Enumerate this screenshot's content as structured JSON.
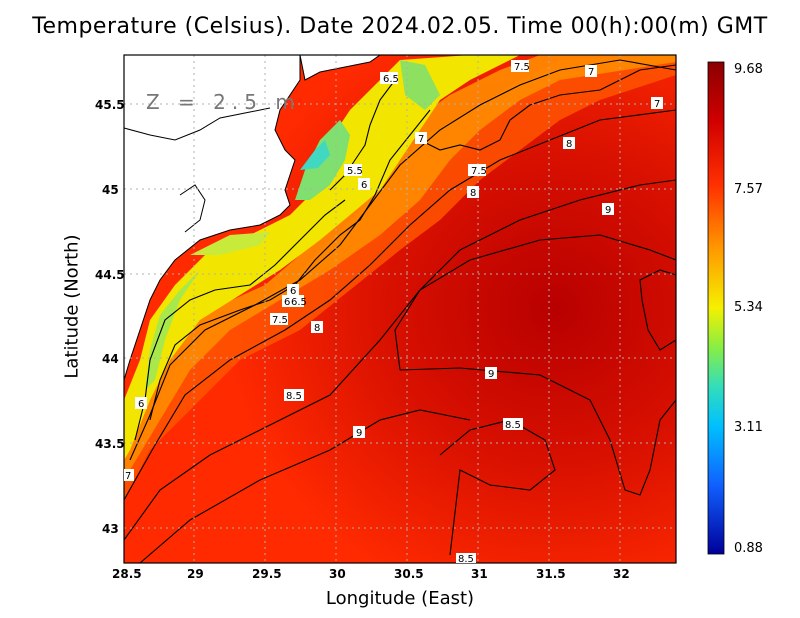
{
  "title": "Temperature (Celsius). Date 2024.02.05. Time 00(h):00(m) GMT",
  "depth_label": "Z = 2.5 m",
  "axes": {
    "xlabel": "Longitude (East)",
    "ylabel": "Latitude (North)",
    "xticks": [
      "28.5",
      "29",
      "29.5",
      "30",
      "30.5",
      "31",
      "31.5",
      "32"
    ],
    "yticks": [
      "43",
      "43.5",
      "44",
      "44.5",
      "45",
      "45.5"
    ]
  },
  "colorbar": {
    "labels": [
      "9.68",
      "7.57",
      "5.34",
      "3.11",
      "0.88"
    ],
    "colors": [
      "#8b0000",
      "#ff2000",
      "#ff9900",
      "#ffee00",
      "#44ddaa",
      "#00bfff",
      "#1060ff",
      "#0000a0"
    ]
  },
  "contour_labels": [
    "6.5",
    "7.5",
    "7",
    "7",
    "8",
    "7",
    "7.5",
    "5.5",
    "6",
    "8",
    "9",
    "6",
    "6",
    "6.5",
    "7.5",
    "8",
    "9",
    "6",
    "8.5",
    "9",
    "8.5",
    "7",
    "8.5"
  ],
  "colors": {
    "land": "#ffffff",
    "coast": "#000000",
    "grid": "#b0b0b0"
  }
}
